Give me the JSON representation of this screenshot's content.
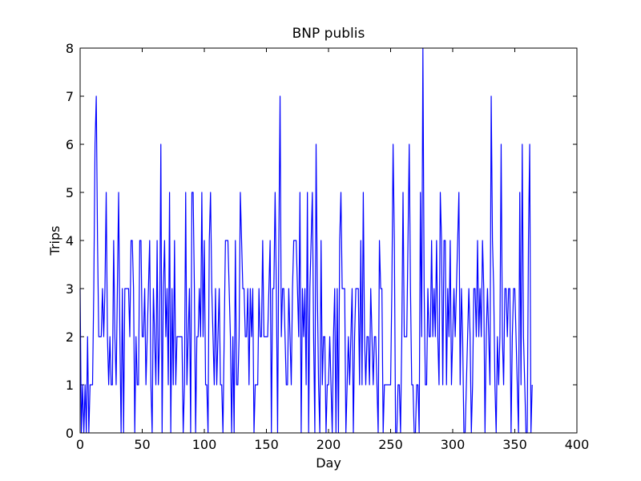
{
  "chart_data": {
    "type": "line",
    "title": "BNP publis",
    "xlabel": "Day",
    "ylabel": "Trips",
    "xlim": [
      0,
      400
    ],
    "ylim": [
      0,
      8
    ],
    "xticks": [
      0,
      50,
      100,
      150,
      200,
      250,
      300,
      350,
      400
    ],
    "yticks": [
      0,
      1,
      2,
      3,
      4,
      5,
      6,
      7,
      8
    ],
    "x": [
      0,
      1,
      2,
      3,
      4,
      5,
      6,
      7,
      8,
      9,
      10,
      11,
      12,
      13,
      14,
      15,
      16,
      17,
      18,
      19,
      20,
      21,
      22,
      23,
      24,
      25,
      26,
      27,
      28,
      29,
      30,
      31,
      32,
      33,
      34,
      35,
      36,
      37,
      38,
      39,
      40,
      41,
      42,
      43,
      44,
      45,
      46,
      47,
      48,
      49,
      50,
      51,
      52,
      53,
      54,
      55,
      56,
      57,
      58,
      59,
      60,
      61,
      62,
      63,
      64,
      65,
      66,
      67,
      68,
      69,
      70,
      71,
      72,
      73,
      74,
      75,
      76,
      77,
      78,
      79,
      80,
      81,
      82,
      83,
      84,
      85,
      86,
      87,
      88,
      89,
      90,
      91,
      92,
      93,
      94,
      95,
      96,
      97,
      98,
      99,
      100,
      101,
      102,
      103,
      104,
      105,
      106,
      107,
      108,
      109,
      110,
      111,
      112,
      113,
      114,
      115,
      116,
      117,
      118,
      119,
      120,
      121,
      122,
      123,
      124,
      125,
      126,
      127,
      128,
      129,
      130,
      131,
      132,
      133,
      134,
      135,
      136,
      137,
      138,
      139,
      140,
      141,
      142,
      143,
      144,
      145,
      146,
      147,
      148,
      149,
      150,
      151,
      152,
      153,
      154,
      155,
      156,
      157,
      158,
      159,
      160,
      161,
      162,
      163,
      164,
      165,
      166,
      167,
      168,
      169,
      170,
      171,
      172,
      173,
      174,
      175,
      176,
      177,
      178,
      179,
      180,
      181,
      182,
      183,
      184,
      185,
      186,
      187,
      188,
      189,
      190,
      191,
      192,
      193,
      194,
      195,
      196,
      197,
      198,
      199,
      200,
      201,
      202,
      203,
      204,
      205,
      206,
      207,
      208,
      209,
      210,
      211,
      212,
      213,
      214,
      215,
      216,
      217,
      218,
      219,
      220,
      221,
      222,
      223,
      224,
      225,
      226,
      227,
      228,
      229,
      230,
      231,
      232,
      233,
      234,
      235,
      236,
      237,
      238,
      239,
      240,
      241,
      242,
      243,
      244,
      245,
      246,
      247,
      248,
      249,
      250,
      251,
      252,
      253,
      254,
      255,
      256,
      257,
      258,
      259,
      260,
      261,
      262,
      263,
      264,
      265,
      266,
      267,
      268,
      269,
      270,
      271,
      272,
      273,
      274,
      275,
      276,
      277,
      278,
      279,
      280,
      281,
      282,
      283,
      284,
      285,
      286,
      287,
      288,
      289,
      290,
      291,
      292,
      293,
      294,
      295,
      296,
      297,
      298,
      299,
      300,
      301,
      302,
      303,
      304,
      305,
      306,
      307,
      308,
      309,
      310,
      311,
      312,
      313,
      314,
      315,
      316,
      317,
      318,
      319,
      320,
      321,
      322,
      323,
      324,
      325,
      326,
      327,
      328,
      329,
      330,
      331,
      332,
      333,
      334,
      335,
      336,
      337,
      338,
      339,
      340,
      341,
      342,
      343,
      344,
      345,
      346,
      347,
      348,
      349,
      350,
      351,
      352,
      353,
      354,
      355,
      356,
      357,
      358,
      359,
      360,
      361,
      362,
      363,
      364
    ],
    "color": "#0000ff",
    "values": [
      3,
      0,
      1,
      0,
      1,
      0,
      2,
      0,
      1,
      1,
      1,
      3,
      6,
      7,
      4,
      2,
      2,
      2,
      3,
      2,
      3,
      5,
      2,
      1,
      2,
      1,
      1,
      4,
      2,
      1,
      3,
      5,
      2,
      0,
      3,
      0,
      3,
      3,
      3,
      3,
      2,
      4,
      4,
      3,
      0,
      2,
      1,
      1,
      4,
      4,
      2,
      2,
      3,
      1,
      2,
      3,
      4,
      1,
      0,
      3,
      2,
      1,
      4,
      1,
      2,
      6,
      0,
      3,
      4,
      2,
      3,
      1,
      5,
      0,
      3,
      1,
      4,
      1,
      2,
      2,
      2,
      2,
      2,
      0,
      1,
      5,
      1,
      2,
      3,
      0,
      5,
      5,
      3,
      0,
      2,
      2,
      3,
      2,
      5,
      2,
      4,
      1,
      1,
      0,
      4,
      5,
      3,
      2,
      1,
      3,
      1,
      2,
      3,
      1,
      1,
      0,
      2,
      4,
      4,
      4,
      3,
      2,
      0,
      2,
      0,
      4,
      1,
      1,
      2,
      5,
      4,
      3,
      3,
      2,
      2,
      3,
      1,
      3,
      2,
      3,
      0,
      1,
      1,
      1,
      3,
      2,
      2,
      4,
      2,
      2,
      2,
      2,
      3,
      4,
      0,
      3,
      3,
      5,
      3,
      0,
      4,
      7,
      2,
      3,
      3,
      2,
      1,
      1,
      3,
      2,
      1,
      3,
      4,
      4,
      4,
      3,
      2,
      5,
      0,
      3,
      2,
      3,
      1,
      5,
      0,
      3,
      4,
      5,
      2,
      0,
      6,
      3,
      1,
      0,
      4,
      1,
      2,
      2,
      0,
      1,
      1,
      2,
      1,
      0,
      2,
      3,
      0,
      3,
      0,
      4,
      5,
      3,
      3,
      3,
      0,
      1,
      2,
      1,
      2,
      3,
      0,
      2,
      3,
      3,
      3,
      1,
      4,
      1,
      5,
      2,
      1,
      2,
      2,
      1,
      3,
      2,
      1,
      2,
      2,
      1,
      0,
      4,
      3,
      3,
      0,
      1,
      1,
      1,
      1,
      1,
      1,
      3,
      6,
      4,
      0,
      0,
      1,
      1,
      0,
      2,
      5,
      2,
      2,
      2,
      4,
      6,
      3,
      1,
      1,
      0,
      0,
      1,
      1,
      0,
      5,
      2,
      8,
      3,
      1,
      1,
      3,
      2,
      2,
      4,
      2,
      3,
      2,
      4,
      2,
      1,
      5,
      4,
      1,
      4,
      4,
      1,
      3,
      2,
      4,
      1,
      2,
      3,
      2,
      3,
      4,
      5,
      1,
      3,
      2,
      0,
      0,
      1,
      2,
      3,
      2,
      0,
      1,
      3,
      3,
      2,
      4,
      2,
      3,
      2,
      4,
      3,
      0,
      2,
      3,
      2,
      1,
      7,
      4,
      3,
      1,
      0,
      2,
      1,
      2,
      6,
      2,
      1,
      3,
      3,
      2,
      3,
      3,
      0,
      2,
      3,
      3,
      2,
      1,
      0,
      5,
      1,
      6,
      2,
      1,
      0,
      0,
      4,
      6,
      0,
      1
    ]
  }
}
